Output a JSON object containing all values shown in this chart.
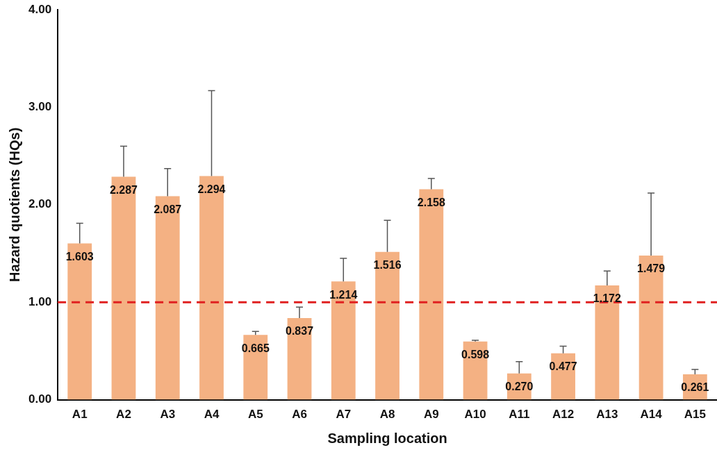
{
  "chart_data": {
    "type": "bar",
    "xlabel": "Sampling location",
    "ylabel": "Hazard quotients (HQs)",
    "categories": [
      "A1",
      "A2",
      "A3",
      "A4",
      "A5",
      "A6",
      "A7",
      "A8",
      "A9",
      "A10",
      "A11",
      "A12",
      "A13",
      "A14",
      "A15"
    ],
    "values": [
      1.603,
      2.287,
      2.087,
      2.294,
      0.665,
      0.837,
      1.214,
      1.516,
      2.158,
      0.598,
      0.27,
      0.477,
      1.172,
      1.479,
      0.261
    ],
    "errors": [
      [
        1.603,
        1.81
      ],
      [
        2.287,
        2.6
      ],
      [
        2.087,
        2.37
      ],
      [
        2.294,
        3.17
      ],
      [
        0.665,
        0.7
      ],
      [
        0.837,
        0.95
      ],
      [
        1.214,
        1.45
      ],
      [
        1.516,
        1.84
      ],
      [
        2.158,
        2.27
      ],
      [
        0.598,
        0.61
      ],
      [
        0.27,
        0.39
      ],
      [
        0.477,
        0.55
      ],
      [
        1.172,
        1.32
      ],
      [
        1.479,
        2.12
      ],
      [
        0.261,
        0.31
      ]
    ],
    "value_labels": [
      "1.603",
      "2.287",
      "2.087",
      "2.294",
      "0.665",
      "0.837",
      "1.214",
      "1.516",
      "2.158",
      "0.598",
      "0.270",
      "0.477",
      "1.172",
      "1.479",
      "0.261"
    ],
    "color": "#f4b183",
    "ylim": [
      0,
      4
    ],
    "yticks": [
      {
        "value": 0,
        "label": "0.00"
      },
      {
        "value": 1,
        "label": "1.00"
      },
      {
        "value": 2,
        "label": "2.00"
      },
      {
        "value": 3,
        "label": "3.00"
      },
      {
        "value": 4,
        "label": "4.00"
      }
    ],
    "ref_lines": [
      {
        "axis": "y",
        "value": 1,
        "color": "#e02020",
        "line_style": "dashed"
      }
    ],
    "grid": false,
    "legend": false
  }
}
